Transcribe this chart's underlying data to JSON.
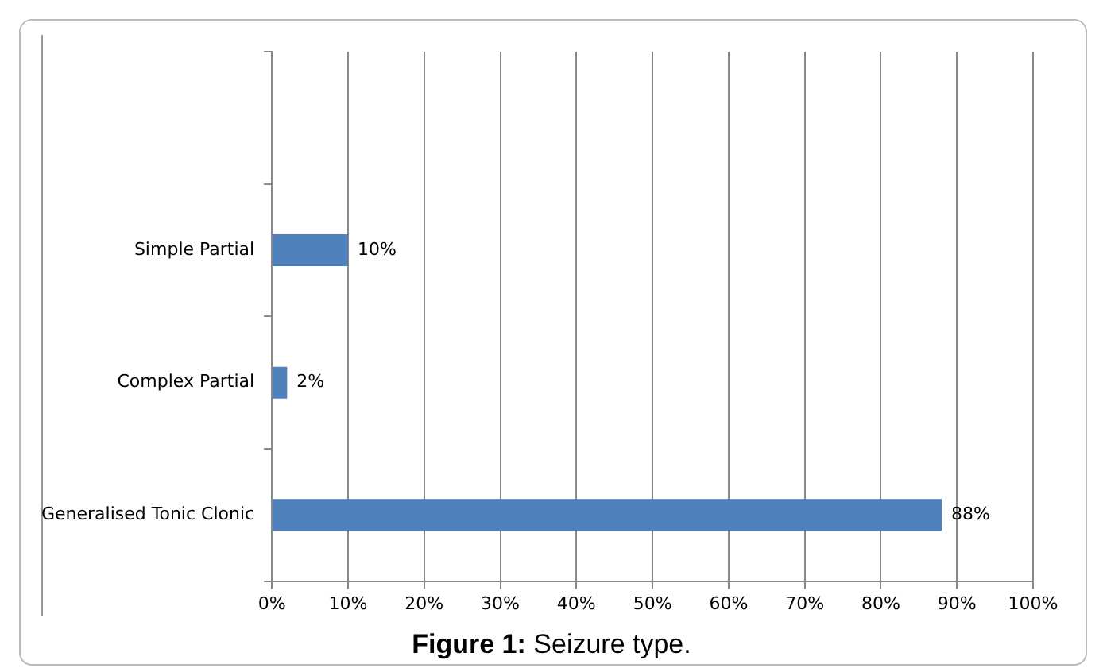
{
  "chart_data": {
    "type": "bar",
    "orientation": "horizontal",
    "title": "Figure 1: Seizure type.",
    "categories": [
      null,
      "Simple Partial",
      "Complex Partial",
      "Generalised Tonic Clonic"
    ],
    "values": [
      null,
      10,
      2,
      88
    ],
    "value_labels": [
      null,
      "10%",
      "2%",
      "88%"
    ],
    "color": "#4f81bd",
    "xlim": [
      0,
      100
    ],
    "xticks": [
      {
        "value": 0,
        "label": "0%"
      },
      {
        "value": 10,
        "label": "10%"
      },
      {
        "value": 20,
        "label": "20%"
      },
      {
        "value": 30,
        "label": "30%"
      },
      {
        "value": 40,
        "label": "40%"
      },
      {
        "value": 50,
        "label": "50%"
      },
      {
        "value": 60,
        "label": "60%"
      },
      {
        "value": 70,
        "label": "70%"
      },
      {
        "value": 80,
        "label": "80%"
      },
      {
        "value": 90,
        "label": "90%"
      },
      {
        "value": 100,
        "label": "100%"
      }
    ],
    "grid": "x",
    "legend": false
  }
}
